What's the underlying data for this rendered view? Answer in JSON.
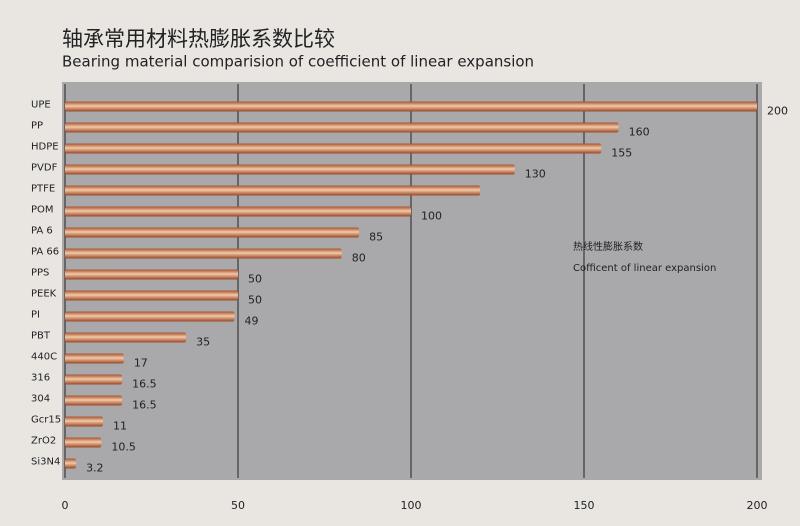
{
  "chart_data": {
    "type": "bar",
    "orientation": "horizontal",
    "title": "轴承常用材料热膨胀系数比较",
    "subtitle": "Bearing material comparision of coefficient of linear expansion",
    "annotation": "热线性膨胀系数",
    "annotation_en": "Cofficent of linear expansion",
    "categories": [
      "UPE",
      "PP",
      "HDPE",
      "PVDF",
      "PTFE",
      "POM",
      "PA 6",
      "PA 66",
      "PPS",
      "PEEK",
      "PI",
      "PBT",
      "440C",
      "316",
      "304",
      "Gcr15",
      "ZrO2",
      "Si3N4"
    ],
    "values": [
      200,
      160,
      155,
      130,
      120,
      100,
      85,
      80,
      50,
      50,
      49,
      35,
      17,
      16.5,
      16.5,
      11,
      10.5,
      3.2
    ],
    "value_labels": [
      "200",
      "160",
      "155",
      "130",
      null,
      "100",
      "85",
      "80",
      "50",
      "50",
      "49",
      "35",
      "17",
      "16.5",
      "16.5",
      "11",
      "10.5",
      "3.2"
    ],
    "color": "#c8774f",
    "xlim": [
      0,
      200
    ],
    "xticks": [
      0,
      50,
      100,
      150,
      200
    ],
    "grid": true
  }
}
